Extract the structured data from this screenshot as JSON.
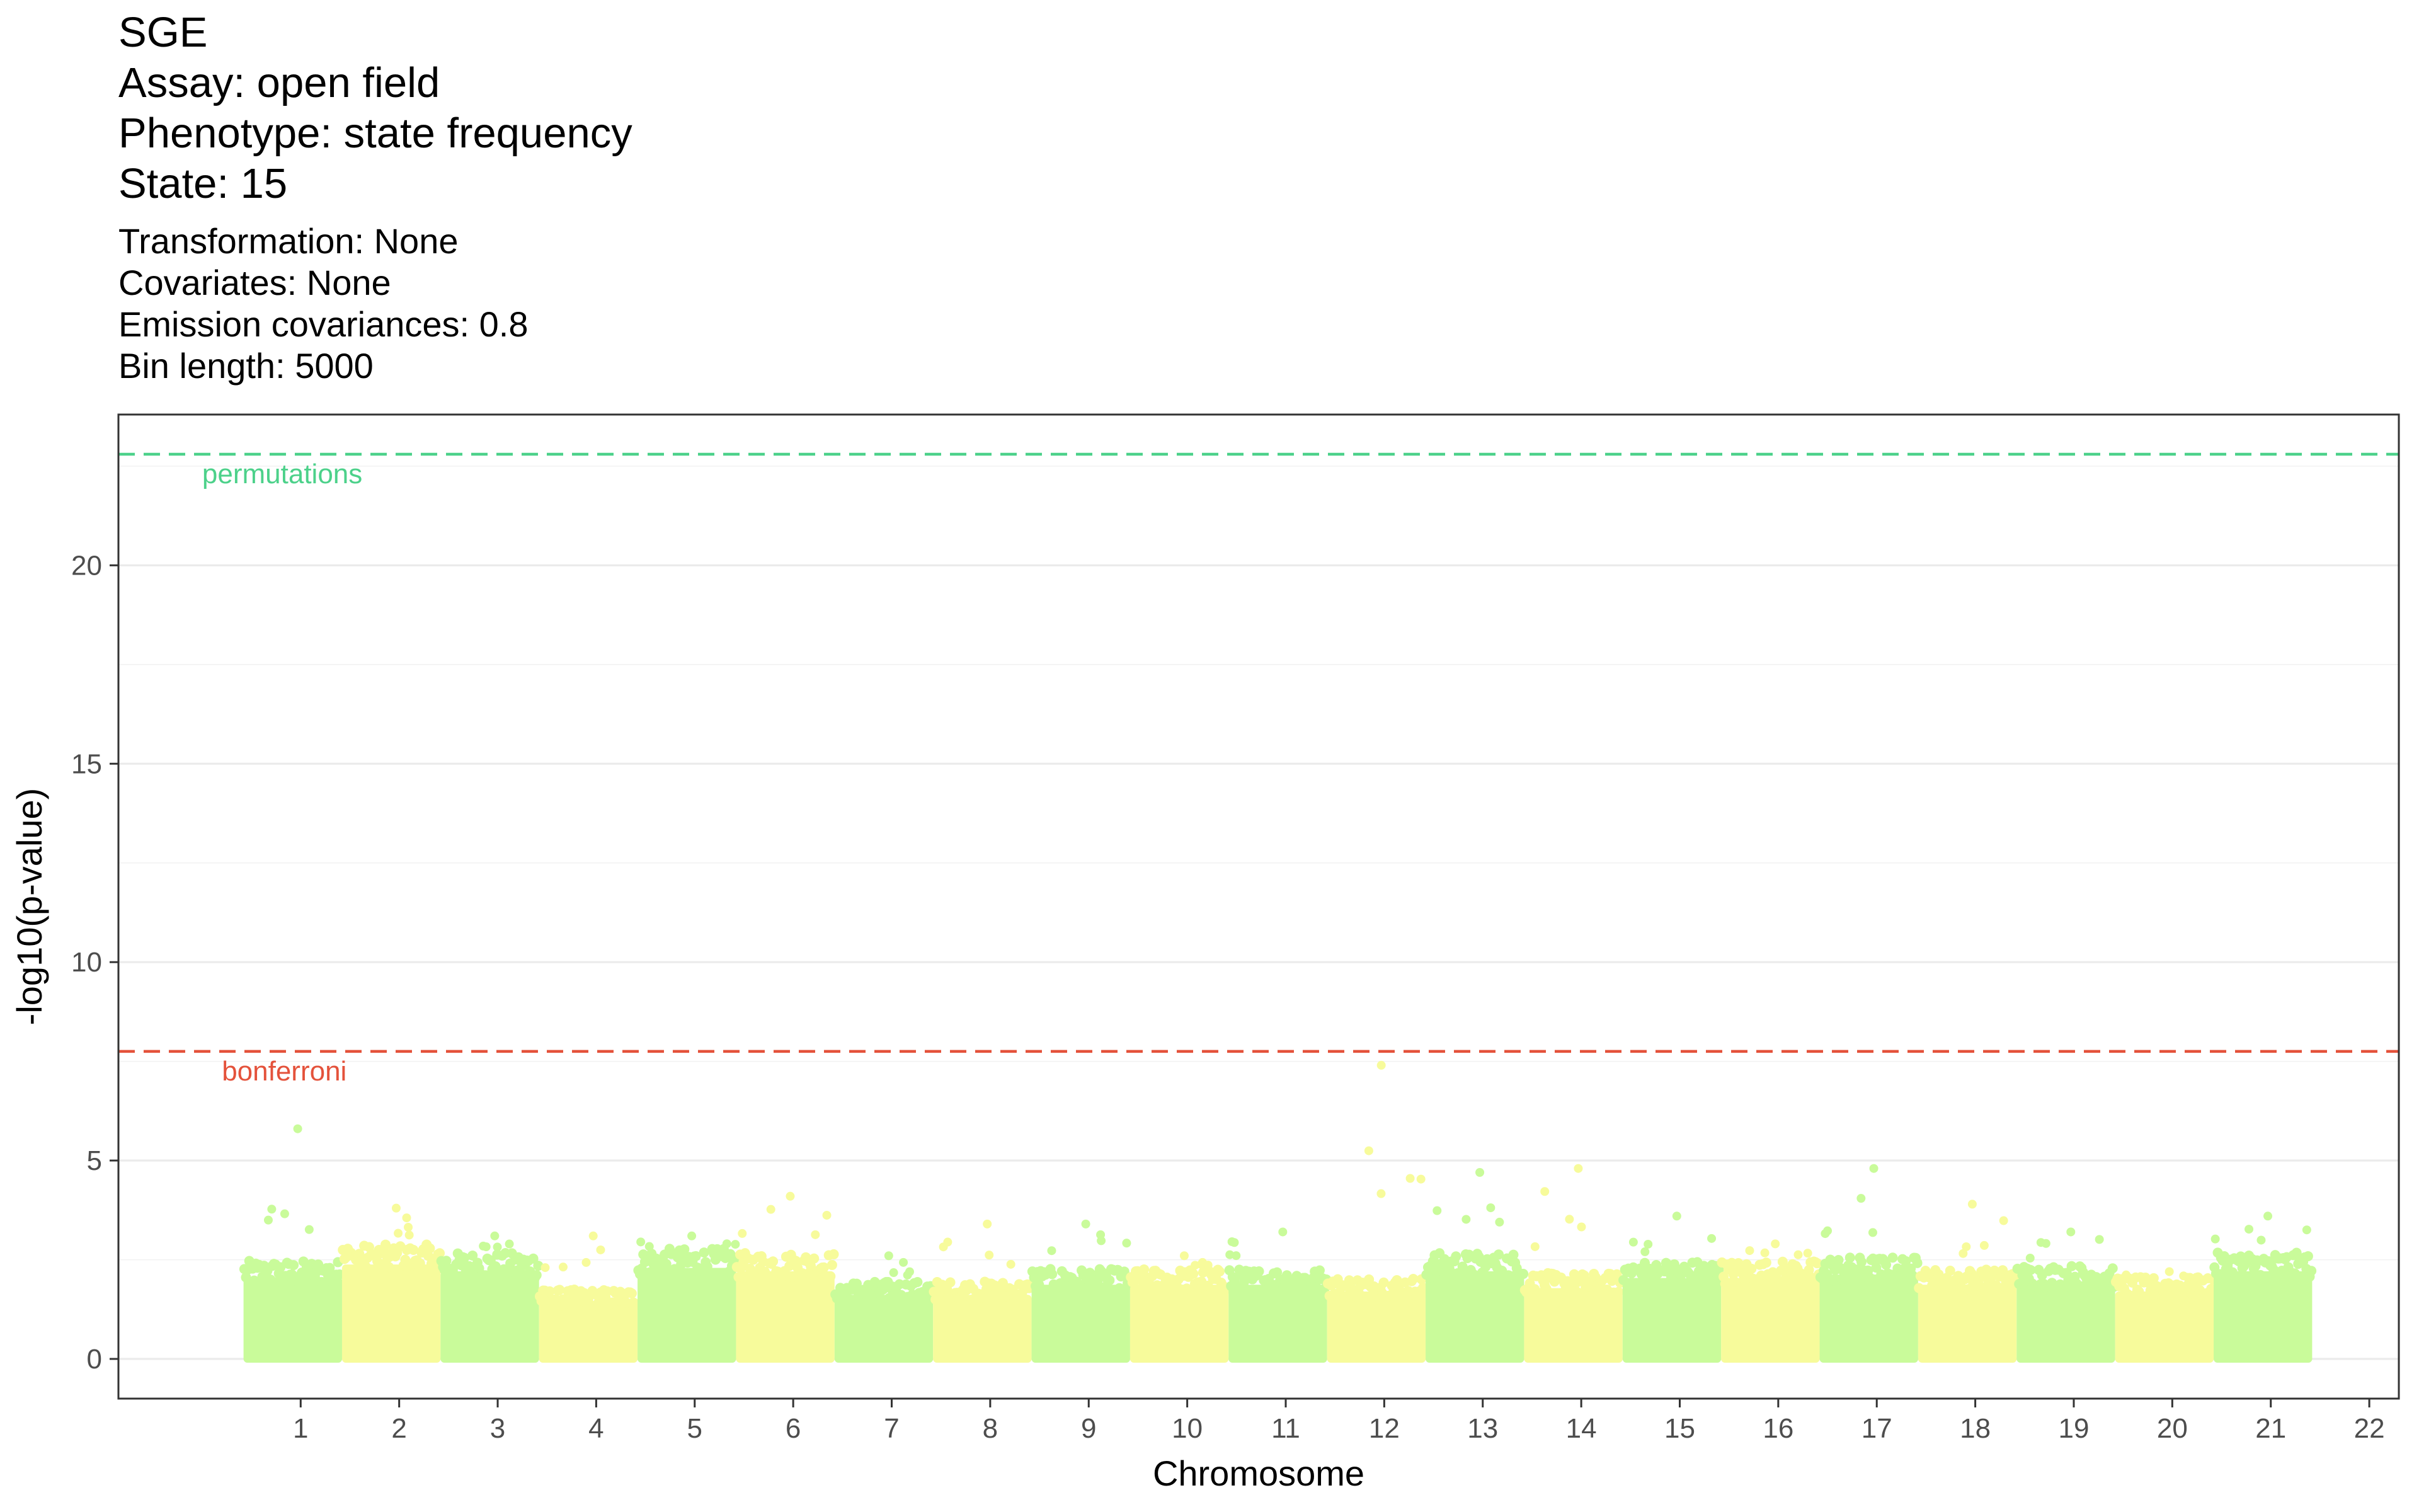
{
  "title_lines": [
    "SGE",
    "Assay: open field",
    "Phenotype: state frequency",
    "State: 15"
  ],
  "subtitle_lines": [
    "Transformation: None",
    "Covariates: None",
    "Emission covariances: 0.8",
    "Bin length: 5000"
  ],
  "chart_data": {
    "type": "scatter",
    "subtype": "manhattan",
    "xlabel": "Chromosome",
    "ylabel": "-log10(p-value)",
    "ylim": [
      -1,
      23.8
    ],
    "y_ticks": [
      0,
      5,
      10,
      15,
      20
    ],
    "x_ticks": [
      "1",
      "2",
      "3",
      "4",
      "5",
      "6",
      "7",
      "8",
      "9",
      "10",
      "11",
      "12",
      "13",
      "14",
      "15",
      "16",
      "17",
      "18",
      "19",
      "20",
      "21",
      "22"
    ],
    "grid": true,
    "legend": "none",
    "colors": {
      "odd": "#c9fb9a",
      "even": "#f7fb9b",
      "bonferroni": "#e4523b",
      "permutations": "#4cd18a"
    },
    "thresholds": [
      {
        "label": "permutations",
        "value": 22.8,
        "color": "#4cd18a"
      },
      {
        "label": "bonferroni",
        "value": 7.75,
        "color": "#e4523b"
      }
    ],
    "chromosomes": [
      {
        "name": "1",
        "base": 2.4,
        "max": 5.8
      },
      {
        "name": "2",
        "base": 2.8,
        "max": 3.8
      },
      {
        "name": "3",
        "base": 2.6,
        "max": 3.1
      },
      {
        "name": "4",
        "base": 1.7,
        "max": 3.1
      },
      {
        "name": "5",
        "base": 2.7,
        "max": 3.1
      },
      {
        "name": "6",
        "base": 2.6,
        "max": 4.1
      },
      {
        "name": "7",
        "base": 1.9,
        "max": 2.6
      },
      {
        "name": "8",
        "base": 1.9,
        "max": 3.4
      },
      {
        "name": "9",
        "base": 2.2,
        "max": 3.4
      },
      {
        "name": "10",
        "base": 2.2,
        "max": 2.6
      },
      {
        "name": "11",
        "base": 2.2,
        "max": 3.2
      },
      {
        "name": "12",
        "base": 2.0,
        "max": 7.4
      },
      {
        "name": "13",
        "base": 2.6,
        "max": 4.7
      },
      {
        "name": "14",
        "base": 2.1,
        "max": 4.8
      },
      {
        "name": "15",
        "base": 2.4,
        "max": 3.6
      },
      {
        "name": "16",
        "base": 2.4,
        "max": 2.9
      },
      {
        "name": "17",
        "base": 2.5,
        "max": 4.8
      },
      {
        "name": "18",
        "base": 2.2,
        "max": 3.9
      },
      {
        "name": "19",
        "base": 2.3,
        "max": 3.2
      },
      {
        "name": "20",
        "base": 2.0,
        "max": 2.2
      },
      {
        "name": "21",
        "base": 2.6,
        "max": 3.6
      }
    ]
  }
}
